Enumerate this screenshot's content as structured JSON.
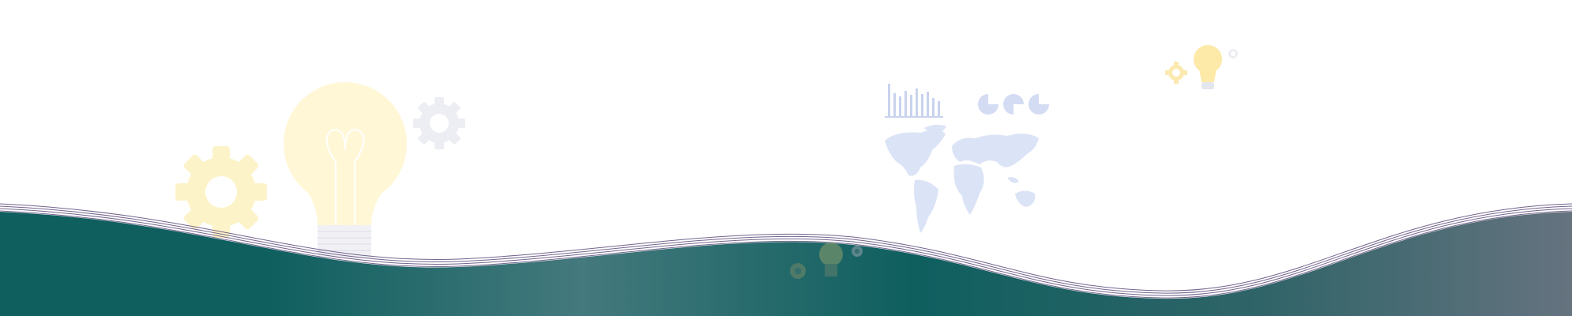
{
  "banner": {
    "colors": {
      "background": "#ffffff",
      "wave_dark": "#0f5f5f",
      "wave_mid": "#44797d",
      "wave_right": "#65737f",
      "wave_lines": "#5b4a7a",
      "bulb_glow": "#fff6cf",
      "gear_soft": "#fdf3c8",
      "gear_grey": "#eceef3",
      "map_fill": "#d6def4",
      "chart_stroke": "#c3cdea"
    },
    "decorations": [
      "gear-icon",
      "lightbulb-icon",
      "bar-chart-icon",
      "pie-chart-icon",
      "world-map-icon"
    ]
  }
}
